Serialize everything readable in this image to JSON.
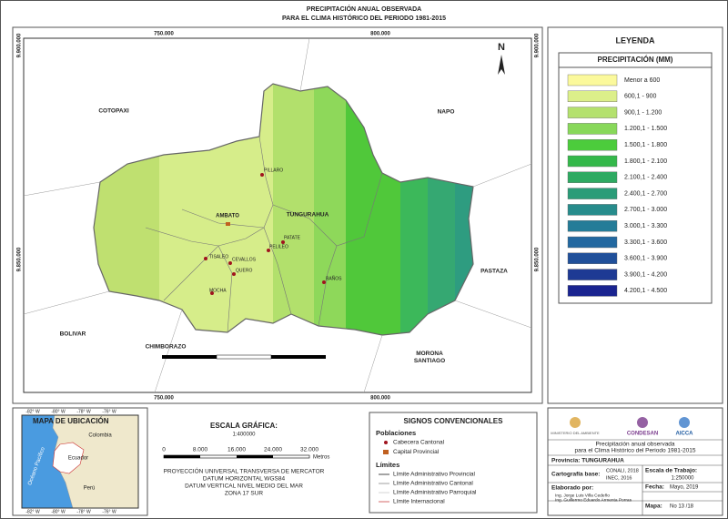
{
  "title": [
    "PRECIPITACIÓN ANUAL OBSERVADA",
    "PARA EL CLIMA HISTÓRICO DEL PERIODO 1981-2015"
  ],
  "map": {
    "north": "N",
    "x_coords": [
      "750.000",
      "800.000"
    ],
    "y_coords": [
      "9.900.000",
      "9.850.000"
    ],
    "provinces": [
      "COTOPAXI",
      "NAPO",
      "PASTAZA",
      "BOLIVAR",
      "CHIMBORAZO",
      "MORONA SANTIAGO",
      "TUNGURAHUA"
    ],
    "capital": "AMBATO",
    "cantons": [
      "PILLARO",
      "PATATE",
      "PELILEO",
      "TISALEO",
      "CEVALLOS",
      "QUERO",
      "MOCHA",
      "BAÑOS"
    ]
  },
  "legend": {
    "title": "LEYENDA",
    "subtitle": "PRECIPITACIÓN (MM)",
    "classes": [
      {
        "label": "Menor a 600",
        "color": "#fbf99c"
      },
      {
        "label": "600,1 - 900",
        "color": "#dcef8a"
      },
      {
        "label": "900,1 - 1.200",
        "color": "#b4e16e"
      },
      {
        "label": "1.200,1 - 1.500",
        "color": "#88d85a"
      },
      {
        "label": "1.500,1 - 1.800",
        "color": "#4ccc3c"
      },
      {
        "label": "1.800,1 - 2.100",
        "color": "#34b84a"
      },
      {
        "label": "2.100,1 - 2.400",
        "color": "#2eaa62"
      },
      {
        "label": "2.400,1 - 2.700",
        "color": "#2a9c78"
      },
      {
        "label": "2.700,1 - 3.000",
        "color": "#278c8c"
      },
      {
        "label": "3.000,1 - 3.300",
        "color": "#247c98"
      },
      {
        "label": "3.300,1 - 3.600",
        "color": "#2268a0"
      },
      {
        "label": "3.600,1 - 3.900",
        "color": "#20509a"
      },
      {
        "label": "3.900,1 - 4.200",
        "color": "#1e3a94"
      },
      {
        "label": "4.200,1 - 4.500",
        "color": "#1a2490"
      }
    ]
  },
  "location_map": {
    "title": "MAPA DE UBICACIÓN",
    "countries": [
      "Colombia",
      "Ecuador",
      "Perú"
    ],
    "ocean": "Océano Pacífico",
    "lon_labels": [
      "-82° W",
      "-80° W",
      "-78° W",
      "-76° W"
    ]
  },
  "scale": {
    "title": "ESCALA GRÁFICA:",
    "ratio": "1:400000",
    "ticks": [
      "0",
      "8.000",
      "16.000",
      "24.000",
      "32.000"
    ],
    "unit": "Metros",
    "projection": [
      "PROYECCIÓN UNIVERSAL TRANSVERSA DE MERCATOR",
      "DATUM HORIZONTAL WGS84",
      "DATUM VERTICAL NIVEL MEDIO DEL MAR",
      "ZONA 17 SUR"
    ]
  },
  "signs": {
    "title": "SIGNOS CONVENCIONALES",
    "populations_title": "Poblaciones",
    "populations": [
      "Cabecera Cantonal",
      "Capital Provincial"
    ],
    "limits_title": "Límites",
    "limits": [
      "Límite Administrativo Provincial",
      "Límite Administrativo Cantonal",
      "Límite Administrativo Parroquial",
      "Límite Internacional"
    ]
  },
  "info": {
    "logos": [
      "MINISTERIO DEL AMBIENTE",
      "CONDESAN",
      "AICCA"
    ],
    "description": [
      "Precipitación anual observada",
      "para el Clima Histórico del Periodo 1981-2015"
    ],
    "province": "Provincia: TUNGURAHUA",
    "base_label": "Cartografía base:",
    "base_value": [
      "CONALI, 2018",
      "INEC, 2016"
    ],
    "scale_label": "Escala de Trabajo:",
    "scale_value": "1:250000",
    "author_label": "Elaborado por:",
    "authors": [
      "Ing. Jorge Luis Villa Cedeño",
      "Ing. Guillermo Eduardo Armenta Porras"
    ],
    "date_label": "Fecha:",
    "date_value": "Mayo, 2019",
    "map_label": "Mapa:",
    "map_value": "No 13 /18"
  }
}
